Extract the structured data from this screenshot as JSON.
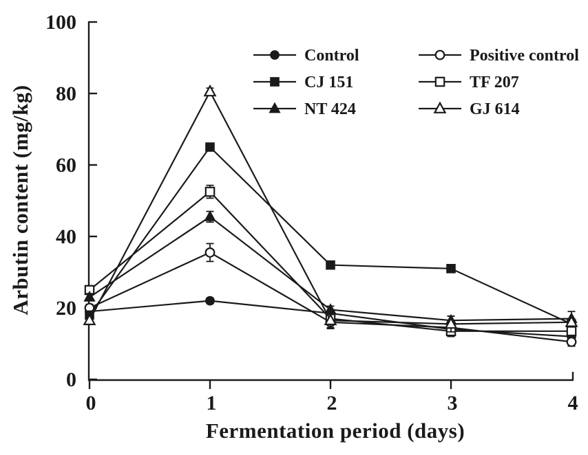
{
  "figure": {
    "background": "#ffffff",
    "ink_color": "#1a1a1a"
  },
  "chart_data": {
    "type": "line",
    "title": "",
    "xlabel": "Fermentation period (days)",
    "ylabel": "Arbutin content (mg/kg)",
    "x": [
      0,
      1,
      2,
      3,
      4
    ],
    "x_ticks": [
      "0",
      "1",
      "2",
      "3",
      "4"
    ],
    "y_ticks": [
      "0",
      "20",
      "40",
      "60",
      "80",
      "100"
    ],
    "xlim": [
      0,
      4
    ],
    "ylim": [
      0,
      100
    ],
    "grid": false,
    "legend_position": "top-center-inside",
    "series": [
      {
        "name": "Control",
        "marker": "circle-filled",
        "values": [
          19,
          22,
          18.5,
          14,
          12
        ],
        "errors": [
          0.8,
          0.8,
          1,
          1.5,
          1
        ]
      },
      {
        "name": "Positive control",
        "marker": "circle-open",
        "values": [
          20,
          35.5,
          16,
          14.5,
          10.5
        ],
        "errors": [
          1,
          2.5,
          1.5,
          1.2,
          1.2
        ]
      },
      {
        "name": "CJ 151",
        "marker": "square-filled",
        "values": [
          18,
          65,
          32,
          31,
          15.5
        ],
        "errors": [
          1,
          1,
          0.8,
          1,
          1
        ]
      },
      {
        "name": "TF 207",
        "marker": "square-open",
        "values": [
          25,
          52.5,
          17,
          13.5,
          13.5
        ],
        "errors": [
          1.2,
          1.8,
          1.5,
          1.5,
          1
        ]
      },
      {
        "name": "NT 424",
        "marker": "triangle-filled",
        "values": [
          23,
          45.5,
          19.5,
          16.5,
          17
        ],
        "errors": [
          1,
          1.5,
          1,
          1.2,
          2
        ]
      },
      {
        "name": "GJ 614",
        "marker": "triangle-open",
        "values": [
          16.5,
          80.5,
          16.5,
          15.5,
          16
        ],
        "errors": [
          1,
          1,
          2.3,
          2.2,
          1
        ]
      }
    ]
  },
  "legend": {
    "entries": [
      {
        "label": "Control",
        "marker": "circle-filled"
      },
      {
        "label": "Positive control",
        "marker": "circle-open"
      },
      {
        "label": "CJ 151",
        "marker": "square-filled"
      },
      {
        "label": "TF 207",
        "marker": "square-open"
      },
      {
        "label": "NT 424",
        "marker": "triangle-filled"
      },
      {
        "label": "GJ 614",
        "marker": "triangle-open"
      }
    ]
  }
}
